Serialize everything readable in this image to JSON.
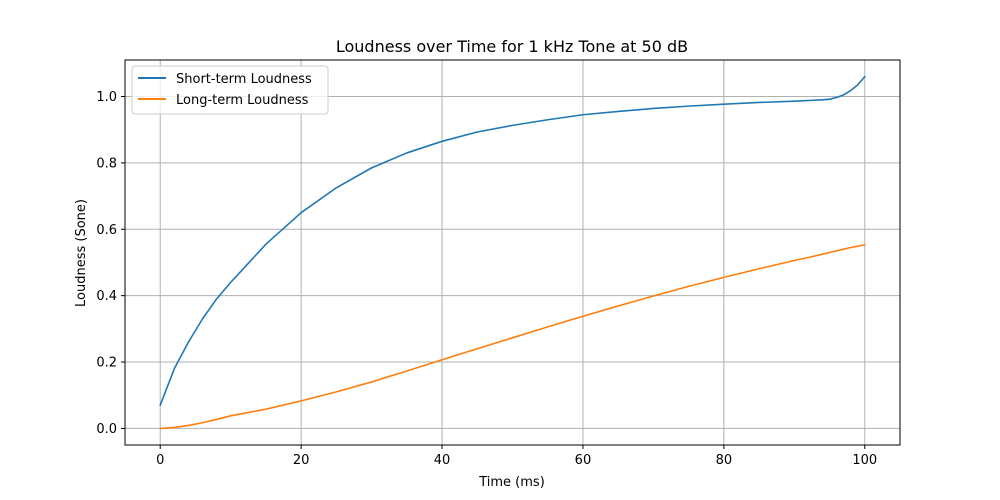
{
  "chart_data": {
    "type": "line",
    "title": "Loudness over Time for 1 kHz Tone at 50 dB",
    "xlabel": "Time (ms)",
    "ylabel": "Loudness (Sone)",
    "xlim": [
      -5,
      105
    ],
    "ylim": [
      -0.05,
      1.11
    ],
    "xticks": [
      "0",
      "20",
      "40",
      "60",
      "80",
      "100"
    ],
    "yticks": [
      "0.0",
      "0.2",
      "0.4",
      "0.6",
      "0.8",
      "1.0"
    ],
    "grid": true,
    "legend_position": "upper-left",
    "x": [
      0,
      2,
      4,
      6,
      8,
      10,
      15,
      20,
      25,
      30,
      35,
      40,
      45,
      50,
      55,
      60,
      65,
      70,
      75,
      80,
      85,
      90,
      92,
      94,
      95,
      96,
      97,
      98,
      99,
      100
    ],
    "series": [
      {
        "name": "Short-term Loudness",
        "color": "#1f77b4",
        "values": [
          0.07,
          0.18,
          0.26,
          0.33,
          0.39,
          0.44,
          0.555,
          0.65,
          0.725,
          0.785,
          0.83,
          0.865,
          0.893,
          0.913,
          0.93,
          0.945,
          0.955,
          0.964,
          0.971,
          0.977,
          0.982,
          0.986,
          0.988,
          0.99,
          0.992,
          0.997,
          1.005,
          1.018,
          1.035,
          1.06
        ]
      },
      {
        "name": "Long-term Loudness",
        "color": "#ff7f0e",
        "values": [
          0.0,
          0.003,
          0.009,
          0.017,
          0.027,
          0.038,
          0.058,
          0.083,
          0.11,
          0.14,
          0.173,
          0.207,
          0.24,
          0.273,
          0.306,
          0.338,
          0.369,
          0.399,
          0.428,
          0.455,
          0.481,
          0.506,
          0.515,
          0.525,
          0.53,
          0.535,
          0.54,
          0.545,
          0.549,
          0.553
        ]
      }
    ]
  }
}
